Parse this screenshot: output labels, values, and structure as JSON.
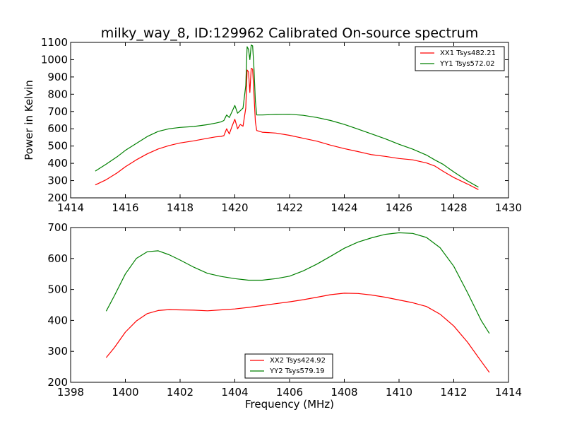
{
  "title": "milky_way_8, ID:129962 Calibrated On-source spectrum",
  "chart_data": [
    {
      "type": "line",
      "ylabel": "Power in Kelvin",
      "xlim": [
        1414,
        1430
      ],
      "ylim": [
        200,
        1100
      ],
      "xticks": [
        1414,
        1416,
        1418,
        1420,
        1422,
        1424,
        1426,
        1428,
        1430
      ],
      "yticks": [
        200,
        300,
        400,
        500,
        600,
        700,
        800,
        900,
        1000,
        1100
      ],
      "legend_position": "top-right",
      "series": [
        {
          "name": "XX1 Tsys482.21",
          "color": "#ff0000",
          "points": [
            [
              1414.9,
              275
            ],
            [
              1415.3,
              305
            ],
            [
              1415.7,
              345
            ],
            [
              1416.0,
              380
            ],
            [
              1416.4,
              420
            ],
            [
              1416.8,
              455
            ],
            [
              1417.2,
              483
            ],
            [
              1417.6,
              503
            ],
            [
              1418.0,
              518
            ],
            [
              1418.5,
              530
            ],
            [
              1419.0,
              545
            ],
            [
              1419.3,
              553
            ],
            [
              1419.5,
              556
            ],
            [
              1419.6,
              560
            ],
            [
              1419.7,
              600
            ],
            [
              1419.8,
              570
            ],
            [
              1419.9,
              615
            ],
            [
              1420.0,
              655
            ],
            [
              1420.1,
              600
            ],
            [
              1420.2,
              625
            ],
            [
              1420.3,
              615
            ],
            [
              1420.4,
              720
            ],
            [
              1420.45,
              940
            ],
            [
              1420.5,
              930
            ],
            [
              1420.55,
              810
            ],
            [
              1420.6,
              950
            ],
            [
              1420.65,
              945
            ],
            [
              1420.7,
              800
            ],
            [
              1420.75,
              640
            ],
            [
              1420.8,
              590
            ],
            [
              1421.0,
              580
            ],
            [
              1421.5,
              575
            ],
            [
              1422.0,
              562
            ],
            [
              1422.5,
              545
            ],
            [
              1423.0,
              528
            ],
            [
              1423.5,
              505
            ],
            [
              1424.0,
              485
            ],
            [
              1424.5,
              468
            ],
            [
              1425.0,
              450
            ],
            [
              1425.5,
              440
            ],
            [
              1426.0,
              428
            ],
            [
              1426.5,
              420
            ],
            [
              1427.0,
              402
            ],
            [
              1427.3,
              385
            ],
            [
              1427.6,
              355
            ],
            [
              1428.0,
              318
            ],
            [
              1428.5,
              280
            ],
            [
              1428.9,
              248
            ]
          ]
        },
        {
          "name": "YY1 Tsys572.02",
          "color": "#008000",
          "points": [
            [
              1414.9,
              355
            ],
            [
              1415.3,
              395
            ],
            [
              1415.7,
              438
            ],
            [
              1416.0,
              475
            ],
            [
              1416.4,
              515
            ],
            [
              1416.8,
              555
            ],
            [
              1417.2,
              585
            ],
            [
              1417.6,
              600
            ],
            [
              1418.0,
              608
            ],
            [
              1418.5,
              613
            ],
            [
              1419.0,
              624
            ],
            [
              1419.3,
              633
            ],
            [
              1419.5,
              640
            ],
            [
              1419.6,
              648
            ],
            [
              1419.7,
              680
            ],
            [
              1419.8,
              665
            ],
            [
              1419.9,
              700
            ],
            [
              1420.0,
              735
            ],
            [
              1420.1,
              690
            ],
            [
              1420.2,
              705
            ],
            [
              1420.3,
              720
            ],
            [
              1420.4,
              850
            ],
            [
              1420.45,
              1075
            ],
            [
              1420.5,
              1060
            ],
            [
              1420.55,
              1000
            ],
            [
              1420.6,
              1085
            ],
            [
              1420.65,
              1080
            ],
            [
              1420.7,
              950
            ],
            [
              1420.75,
              760
            ],
            [
              1420.8,
              680
            ],
            [
              1421.0,
              680
            ],
            [
              1421.5,
              683
            ],
            [
              1422.0,
              684
            ],
            [
              1422.5,
              678
            ],
            [
              1423.0,
              665
            ],
            [
              1423.5,
              648
            ],
            [
              1424.0,
              625
            ],
            [
              1424.5,
              598
            ],
            [
              1425.0,
              570
            ],
            [
              1425.5,
              542
            ],
            [
              1426.0,
              510
            ],
            [
              1426.5,
              482
            ],
            [
              1427.0,
              448
            ],
            [
              1427.3,
              420
            ],
            [
              1427.6,
              395
            ],
            [
              1428.0,
              350
            ],
            [
              1428.5,
              298
            ],
            [
              1428.9,
              262
            ]
          ]
        }
      ]
    },
    {
      "type": "line",
      "xlabel": "Frequency (MHz)",
      "xlim": [
        1398,
        1414
      ],
      "ylim": [
        200,
        700
      ],
      "xticks": [
        1398,
        1400,
        1402,
        1404,
        1406,
        1408,
        1410,
        1412,
        1414
      ],
      "yticks": [
        200,
        300,
        400,
        500,
        600,
        700
      ],
      "legend_position": "bottom-center",
      "series": [
        {
          "name": "XX2 Tsys424.92",
          "color": "#ff0000",
          "points": [
            [
              1399.3,
              280
            ],
            [
              1399.6,
              312
            ],
            [
              1400.0,
              362
            ],
            [
              1400.4,
              398
            ],
            [
              1400.8,
              422
            ],
            [
              1401.2,
              432
            ],
            [
              1401.6,
              435
            ],
            [
              1402.0,
              434
            ],
            [
              1402.5,
              433
            ],
            [
              1403.0,
              431
            ],
            [
              1403.5,
              434
            ],
            [
              1404.0,
              437
            ],
            [
              1404.5,
              442
            ],
            [
              1405.0,
              448
            ],
            [
              1405.5,
              454
            ],
            [
              1406.0,
              460
            ],
            [
              1406.5,
              467
            ],
            [
              1407.0,
              475
            ],
            [
              1407.5,
              483
            ],
            [
              1408.0,
              488
            ],
            [
              1408.5,
              487
            ],
            [
              1409.0,
              482
            ],
            [
              1409.5,
              475
            ],
            [
              1410.0,
              466
            ],
            [
              1410.5,
              457
            ],
            [
              1411.0,
              445
            ],
            [
              1411.5,
              420
            ],
            [
              1412.0,
              382
            ],
            [
              1412.5,
              330
            ],
            [
              1413.0,
              268
            ],
            [
              1413.3,
              232
            ]
          ]
        },
        {
          "name": "YY2 Tsys579.19",
          "color": "#008000",
          "points": [
            [
              1399.3,
              430
            ],
            [
              1399.6,
              480
            ],
            [
              1400.0,
              550
            ],
            [
              1400.4,
              600
            ],
            [
              1400.8,
              622
            ],
            [
              1401.2,
              625
            ],
            [
              1401.6,
              612
            ],
            [
              1402.0,
              595
            ],
            [
              1402.5,
              572
            ],
            [
              1403.0,
              552
            ],
            [
              1403.5,
              542
            ],
            [
              1404.0,
              535
            ],
            [
              1404.5,
              530
            ],
            [
              1405.0,
              530
            ],
            [
              1405.5,
              535
            ],
            [
              1406.0,
              543
            ],
            [
              1406.5,
              560
            ],
            [
              1407.0,
              582
            ],
            [
              1407.5,
              607
            ],
            [
              1408.0,
              633
            ],
            [
              1408.5,
              653
            ],
            [
              1409.0,
              667
            ],
            [
              1409.5,
              678
            ],
            [
              1410.0,
              683
            ],
            [
              1410.5,
              681
            ],
            [
              1411.0,
              668
            ],
            [
              1411.5,
              635
            ],
            [
              1412.0,
              575
            ],
            [
              1412.5,
              490
            ],
            [
              1413.0,
              400
            ],
            [
              1413.3,
              358
            ]
          ]
        }
      ]
    }
  ]
}
